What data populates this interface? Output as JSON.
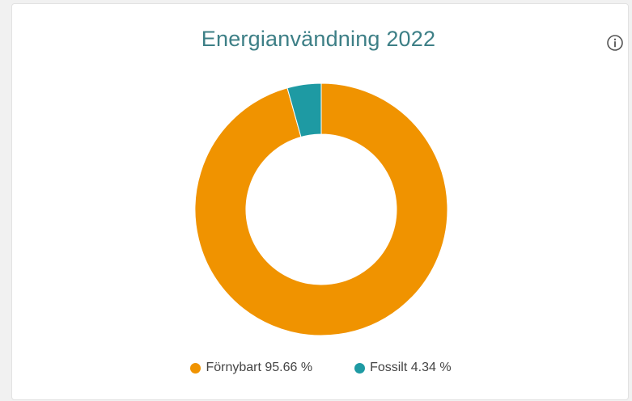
{
  "chart_data": {
    "type": "pie",
    "title": "Energianvändning 2022",
    "donut": true,
    "slices": [
      {
        "label": "Förnybart",
        "value": 95.66,
        "display": "Förnybart 95.66 %",
        "color": "#f09300"
      },
      {
        "label": "Fossilt",
        "value": 4.34,
        "display": "Fossilt 4.34 %",
        "color": "#1e9aa3"
      }
    ],
    "legend_position": "bottom"
  },
  "icons": {
    "info": "info-icon"
  }
}
